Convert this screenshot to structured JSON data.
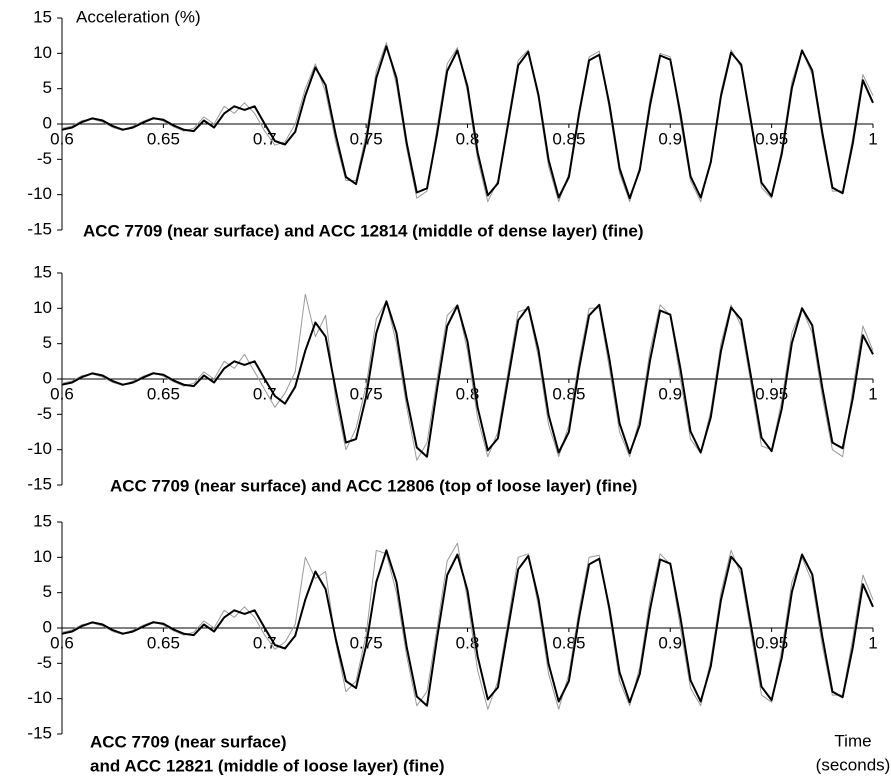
{
  "chart_data": [
    {
      "type": "line",
      "ylabel": "Acceleration (%)",
      "caption": [
        "ACC 7709 (near surface) and ACC 12814 (middle of dense layer) (fine)"
      ],
      "xlim": [
        0.6,
        1
      ],
      "xticks": [
        0.6,
        0.65,
        0.7,
        0.75,
        0.8,
        0.85,
        0.9,
        0.95,
        1
      ],
      "ylim": [
        -15,
        15
      ],
      "yticks": [
        -15,
        -10,
        -5,
        0,
        5,
        10,
        15
      ],
      "x": [
        0.6,
        0.605,
        0.61,
        0.615,
        0.62,
        0.625,
        0.63,
        0.635,
        0.64,
        0.645,
        0.65,
        0.655,
        0.66,
        0.665,
        0.67,
        0.675,
        0.68,
        0.685,
        0.69,
        0.695,
        0.7,
        0.705,
        0.71,
        0.715,
        0.72,
        0.725,
        0.73,
        0.735,
        0.74,
        0.745,
        0.75,
        0.755,
        0.76,
        0.765,
        0.77,
        0.775,
        0.78,
        0.785,
        0.79,
        0.795,
        0.8,
        0.805,
        0.81,
        0.815,
        0.82,
        0.825,
        0.83,
        0.835,
        0.84,
        0.845,
        0.85,
        0.855,
        0.86,
        0.865,
        0.87,
        0.875,
        0.88,
        0.885,
        0.89,
        0.895,
        0.9,
        0.905,
        0.91,
        0.915,
        0.92,
        0.925,
        0.93,
        0.935,
        0.94,
        0.945,
        0.95,
        0.955,
        0.96,
        0.965,
        0.97,
        0.975,
        0.98,
        0.985,
        0.99,
        0.995,
        1
      ],
      "series": [
        {
          "color": "#9a9a9a",
          "values": [
            -0.6,
            -0.3,
            0.5,
            0.7,
            0.3,
            -0.5,
            -0.9,
            -0.3,
            0.4,
            0.9,
            0.4,
            -0.4,
            -1,
            -0.6,
            1,
            0,
            2.5,
            1.5,
            3,
            1.5,
            -1,
            -3,
            -2.5,
            0,
            5,
            8.5,
            4.5,
            -2.5,
            -8,
            -8,
            -1.5,
            7.5,
            11.5,
            5.5,
            -3.5,
            -10.5,
            -9.5,
            -0.5,
            8.5,
            10.8,
            4.5,
            -5,
            -11,
            -8,
            0.5,
            9,
            10.5,
            3.5,
            -6,
            -11,
            -7,
            2,
            9.5,
            10.3,
            2,
            -7,
            -11,
            -6,
            3.5,
            10,
            9.5,
            0.5,
            -8,
            -11,
            -5,
            4.5,
            10.5,
            8,
            -0.5,
            -9,
            -10.5,
            -3.5,
            6,
            10.5,
            7,
            -2,
            -9.5,
            -9.5,
            -2,
            7,
            4
          ]
        },
        {
          "color": "#000000",
          "values": [
            -0.8,
            -0.5,
            0.3,
            0.8,
            0.5,
            -0.3,
            -0.8,
            -0.5,
            0.2,
            0.8,
            0.6,
            -0.2,
            -0.8,
            -1,
            0.5,
            -0.5,
            1.5,
            2.5,
            2,
            2.5,
            0,
            -2.4,
            -2.9,
            -1.1,
            4,
            8,
            5.5,
            -1.5,
            -7.5,
            -8.5,
            -2.5,
            6.5,
            11,
            6.5,
            -2.7,
            -9.7,
            -9.1,
            -1.4,
            7.5,
            10.4,
            5.3,
            -4,
            -10.1,
            -8.4,
            -0.1,
            8.3,
            10.2,
            4.1,
            -5.1,
            -10.4,
            -7.5,
            1.4,
            9,
            9.8,
            2.8,
            -6.3,
            -10.5,
            -6.5,
            2.6,
            9.7,
            9.1,
            1.5,
            -7.4,
            -10.4,
            -5.4,
            3.9,
            10.1,
            8.4,
            0.1,
            -8.3,
            -10.2,
            -4.2,
            5.1,
            10.4,
            7.6,
            -1.2,
            -9,
            -9.8,
            -2.8,
            6.2,
            3
          ]
        }
      ]
    },
    {
      "type": "line",
      "caption": [
        "ACC 7709 (near surface) and ACC 12806 (top of loose layer) (fine)"
      ],
      "xlim": [
        0.6,
        1
      ],
      "xticks": [
        0.6,
        0.65,
        0.7,
        0.75,
        0.8,
        0.85,
        0.9,
        0.95,
        1
      ],
      "ylim": [
        -15,
        15
      ],
      "yticks": [
        -15,
        -10,
        -5,
        0,
        5,
        10,
        15
      ],
      "x": [
        0.6,
        0.605,
        0.61,
        0.615,
        0.62,
        0.625,
        0.63,
        0.635,
        0.64,
        0.645,
        0.65,
        0.655,
        0.66,
        0.665,
        0.67,
        0.675,
        0.68,
        0.685,
        0.69,
        0.695,
        0.7,
        0.705,
        0.71,
        0.715,
        0.72,
        0.725,
        0.73,
        0.735,
        0.74,
        0.745,
        0.75,
        0.755,
        0.76,
        0.765,
        0.77,
        0.775,
        0.78,
        0.785,
        0.79,
        0.795,
        0.8,
        0.805,
        0.81,
        0.815,
        0.82,
        0.825,
        0.83,
        0.835,
        0.84,
        0.845,
        0.85,
        0.855,
        0.86,
        0.865,
        0.87,
        0.875,
        0.88,
        0.885,
        0.89,
        0.895,
        0.9,
        0.905,
        0.91,
        0.915,
        0.92,
        0.925,
        0.93,
        0.935,
        0.94,
        0.945,
        0.95,
        0.955,
        0.96,
        0.965,
        0.97,
        0.975,
        0.98,
        0.985,
        0.99,
        0.995,
        1
      ],
      "series": [
        {
          "color": "#9a9a9a",
          "values": [
            -0.6,
            -0.3,
            0.5,
            0.7,
            0.3,
            -0.5,
            -0.9,
            -0.3,
            0.4,
            0.9,
            0.4,
            -0.4,
            -1,
            -0.6,
            1,
            0,
            2.5,
            1.5,
            3.5,
            1,
            -1.5,
            -4,
            -2,
            1,
            12,
            6,
            9,
            -3,
            -10,
            -7,
            -1,
            8.5,
            11,
            5,
            -4,
            -11.5,
            -9,
            0,
            9,
            10.5,
            4,
            -5.5,
            -11,
            -7.5,
            1,
            9.5,
            10,
            3,
            -6.5,
            -11,
            -6.5,
            2.5,
            10,
            10,
            1.5,
            -7.5,
            -11,
            -5.5,
            4,
            10.5,
            9,
            0,
            -8.5,
            -10.5,
            -4.5,
            5,
            10.5,
            7.5,
            -1,
            -9.5,
            -10,
            -3,
            6.5,
            10,
            6.5,
            -2.5,
            -10,
            -11,
            -1.5,
            7.5,
            4
          ]
        },
        {
          "color": "#000000",
          "values": [
            -0.8,
            -0.5,
            0.3,
            0.8,
            0.5,
            -0.3,
            -0.8,
            -0.5,
            0.2,
            0.8,
            0.6,
            -0.2,
            -0.8,
            -1,
            0.5,
            -0.5,
            1.5,
            2.5,
            2,
            2.5,
            0,
            -2.4,
            -3.5,
            -1.1,
            4,
            8,
            6,
            -1.5,
            -9,
            -8.5,
            -2.5,
            6.5,
            11,
            6.5,
            -2.7,
            -9.7,
            -11,
            -1.4,
            7.5,
            10.4,
            5.3,
            -4,
            -10.1,
            -8.4,
            -0.1,
            8.3,
            10.2,
            4.1,
            -5.1,
            -10.4,
            -7.5,
            1.4,
            9,
            10.5,
            2.8,
            -6.3,
            -10.5,
            -6.5,
            2.6,
            9.7,
            9.1,
            1.5,
            -7.4,
            -10.4,
            -5.4,
            3.9,
            10.1,
            8.4,
            0.1,
            -8.3,
            -10.2,
            -4.2,
            5.1,
            10,
            7.6,
            -1.2,
            -9,
            -9.8,
            -2.8,
            6.2,
            3.5
          ]
        }
      ]
    },
    {
      "type": "line",
      "caption": [
        "ACC 7709 (near surface)",
        "and ACC 12821 (middle of loose layer) (fine)"
      ],
      "xlabel": [
        "Time",
        "(seconds)"
      ],
      "xlim": [
        0.6,
        1
      ],
      "xticks": [
        0.6,
        0.65,
        0.7,
        0.75,
        0.8,
        0.85,
        0.9,
        0.95,
        1
      ],
      "ylim": [
        -15,
        15
      ],
      "yticks": [
        -15,
        -10,
        -5,
        0,
        5,
        10,
        15
      ],
      "x": [
        0.6,
        0.605,
        0.61,
        0.615,
        0.62,
        0.625,
        0.63,
        0.635,
        0.64,
        0.645,
        0.65,
        0.655,
        0.66,
        0.665,
        0.67,
        0.675,
        0.68,
        0.685,
        0.69,
        0.695,
        0.7,
        0.705,
        0.71,
        0.715,
        0.72,
        0.725,
        0.73,
        0.735,
        0.74,
        0.745,
        0.75,
        0.755,
        0.76,
        0.765,
        0.77,
        0.775,
        0.78,
        0.785,
        0.79,
        0.795,
        0.8,
        0.805,
        0.81,
        0.815,
        0.82,
        0.825,
        0.83,
        0.835,
        0.84,
        0.845,
        0.85,
        0.855,
        0.86,
        0.865,
        0.87,
        0.875,
        0.88,
        0.885,
        0.89,
        0.895,
        0.9,
        0.905,
        0.91,
        0.915,
        0.92,
        0.925,
        0.93,
        0.935,
        0.94,
        0.945,
        0.95,
        0.955,
        0.96,
        0.965,
        0.97,
        0.975,
        0.98,
        0.985,
        0.99,
        0.995,
        1
      ],
      "series": [
        {
          "color": "#9a9a9a",
          "values": [
            -0.6,
            -0.3,
            0.5,
            0.7,
            0.3,
            -0.5,
            -0.9,
            -0.3,
            0.4,
            0.9,
            0.4,
            -0.4,
            -1,
            -0.6,
            1,
            0,
            2.5,
            1.5,
            3,
            1.5,
            -1,
            -3,
            -2,
            0.5,
            10,
            7,
            8,
            -2,
            -9,
            -7.5,
            -1,
            11,
            10.5,
            5,
            -4,
            -11,
            -9,
            0,
            9.5,
            12,
            4,
            -6,
            -11.5,
            -7.5,
            1,
            10,
            10.5,
            3,
            -6.5,
            -11.5,
            -6.5,
            2.5,
            10,
            10.3,
            2,
            -7.5,
            -11,
            -5.5,
            4,
            10.5,
            9,
            0,
            -8.5,
            -11,
            -4.5,
            5,
            11,
            7.5,
            -1,
            -9.5,
            -10.5,
            -3,
            6.5,
            10,
            6.5,
            -2.5,
            -9.5,
            -9.5,
            -1.5,
            7.5,
            4
          ]
        },
        {
          "color": "#000000",
          "values": [
            -0.8,
            -0.5,
            0.3,
            0.8,
            0.5,
            -0.3,
            -0.8,
            -0.5,
            0.2,
            0.8,
            0.6,
            -0.2,
            -0.8,
            -1,
            0.5,
            -0.5,
            1.5,
            2.5,
            2,
            2.5,
            0,
            -2.4,
            -2.9,
            -1.1,
            4,
            8,
            5.5,
            -1.5,
            -7.5,
            -8.5,
            -2.5,
            6.5,
            11,
            6.5,
            -2.7,
            -9.7,
            -11,
            -1.4,
            7.5,
            10.4,
            5.3,
            -4,
            -10.1,
            -8.4,
            -0.1,
            8.3,
            10.2,
            4.1,
            -5.1,
            -10.4,
            -7.5,
            1.4,
            9,
            9.8,
            2.8,
            -6.3,
            -10.5,
            -6.5,
            2.6,
            9.7,
            9.1,
            1.5,
            -7.4,
            -10.4,
            -5.4,
            3.9,
            10.1,
            8.4,
            0.1,
            -8.3,
            -10.2,
            -4.2,
            5.1,
            10.4,
            7.6,
            -1.2,
            -9,
            -9.8,
            -2.8,
            6.2,
            3
          ]
        }
      ]
    }
  ]
}
